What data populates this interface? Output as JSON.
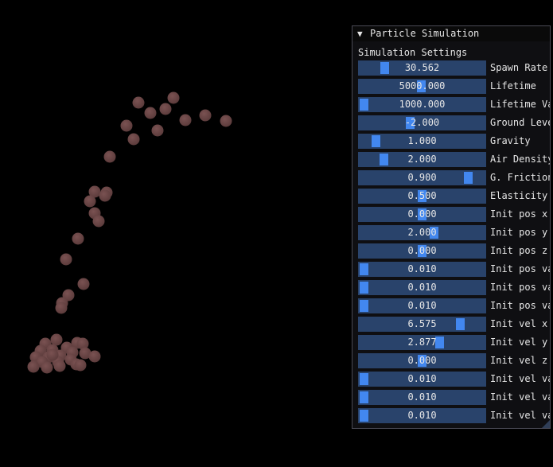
{
  "panel": {
    "title": "Particle Simulation",
    "collapse_icon": "▼",
    "section_title": "Simulation Settings",
    "sliders": [
      {
        "label": "Spawn Rate",
        "value": "30.562",
        "fill": 0.18
      },
      {
        "label": "Lifetime",
        "value": "5000.000",
        "fill": 0.49
      },
      {
        "label": "Lifetime Va",
        "value": "1000.000",
        "fill": 0.0
      },
      {
        "label": "Ground Leve",
        "value": "-2.000",
        "fill": 0.4
      },
      {
        "label": "Gravity",
        "value": "1.000",
        "fill": 0.1
      },
      {
        "label": "Air Density",
        "value": "2.000",
        "fill": 0.17
      },
      {
        "label": "G. Friction",
        "value": "0.900",
        "fill": 0.9
      },
      {
        "label": "Elasticity",
        "value": "0.500",
        "fill": 0.5
      },
      {
        "label": "Init pos x",
        "value": "0.000",
        "fill": 0.5
      },
      {
        "label": "Init pos y",
        "value": "2.000",
        "fill": 0.6
      },
      {
        "label": "Init pos z",
        "value": "0.000",
        "fill": 0.5
      },
      {
        "label": "Init pos va",
        "value": "0.010",
        "fill": 0.0
      },
      {
        "label": "Init pos va",
        "value": "0.010",
        "fill": 0.0
      },
      {
        "label": "Init pos va",
        "value": "0.010",
        "fill": 0.0
      },
      {
        "label": "Init vel x",
        "value": "6.575",
        "fill": 0.83
      },
      {
        "label": "Init vel y",
        "value": "2.877",
        "fill": 0.65
      },
      {
        "label": "Init vel z",
        "value": "0.000",
        "fill": 0.5
      },
      {
        "label": "Init vel va",
        "value": "0.010",
        "fill": 0.0
      },
      {
        "label": "Init vel va",
        "value": "0.010",
        "fill": 0.0
      },
      {
        "label": "Init vel va",
        "value": "0.010",
        "fill": 0.0
      }
    ]
  },
  "colors": {
    "background": "#000000",
    "particle": "#5e3d3d",
    "slider_bg": "#29436b",
    "slider_grab": "#4287ef",
    "panel_bg": "#0f0f12",
    "text": "#e6e6e6"
  },
  "icons": {
    "collapse": "collapse-arrow-icon",
    "resize": "resize-grip-icon",
    "particle": "particle-sphere"
  }
}
